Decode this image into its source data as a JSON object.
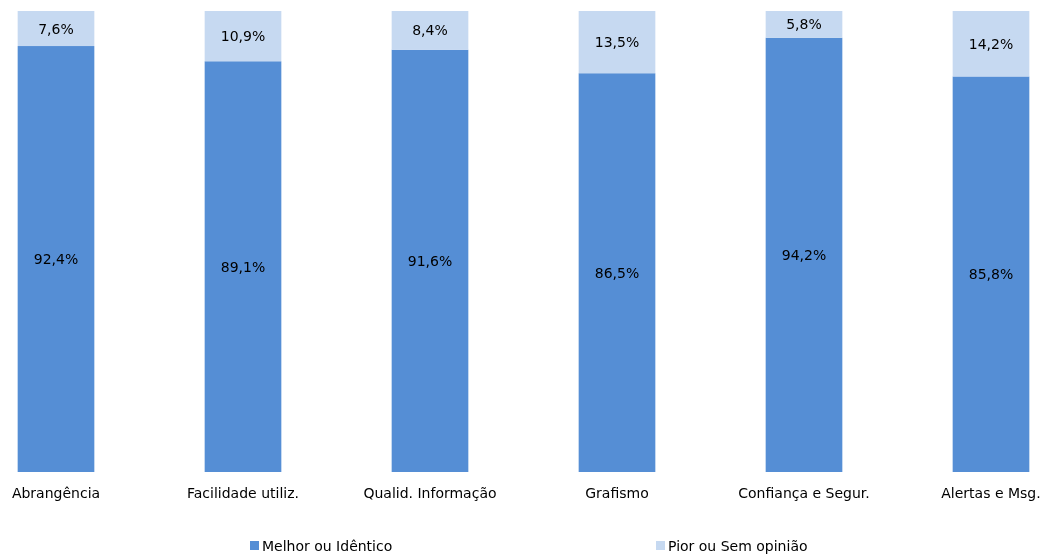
{
  "chart_data": {
    "type": "bar",
    "stacked": true,
    "categories": [
      "Abrangência",
      "Facilidade utiliz.",
      "Qualid. Informação",
      "Grafismo",
      "Confiança e Segur.",
      "Alertas e Msg."
    ],
    "series": [
      {
        "name": "Melhor ou Idêntico",
        "color": "#558ed5",
        "values": [
          92.4,
          89.1,
          91.6,
          86.5,
          94.2,
          85.8
        ],
        "value_labels": [
          "92,4%",
          "89,1%",
          "91,6%",
          "86,5%",
          "94,2%",
          "85,8%"
        ]
      },
      {
        "name": "Pior ou Sem opinião",
        "color": "#c6d9f1",
        "values": [
          7.6,
          10.9,
          8.4,
          13.5,
          5.8,
          14.2
        ],
        "value_labels": [
          "7,6%",
          "10,9%",
          "8,4%",
          "13,5%",
          "5,8%",
          "14,2%"
        ]
      }
    ],
    "ylim": [
      0,
      100
    ],
    "legend": "bottom"
  }
}
